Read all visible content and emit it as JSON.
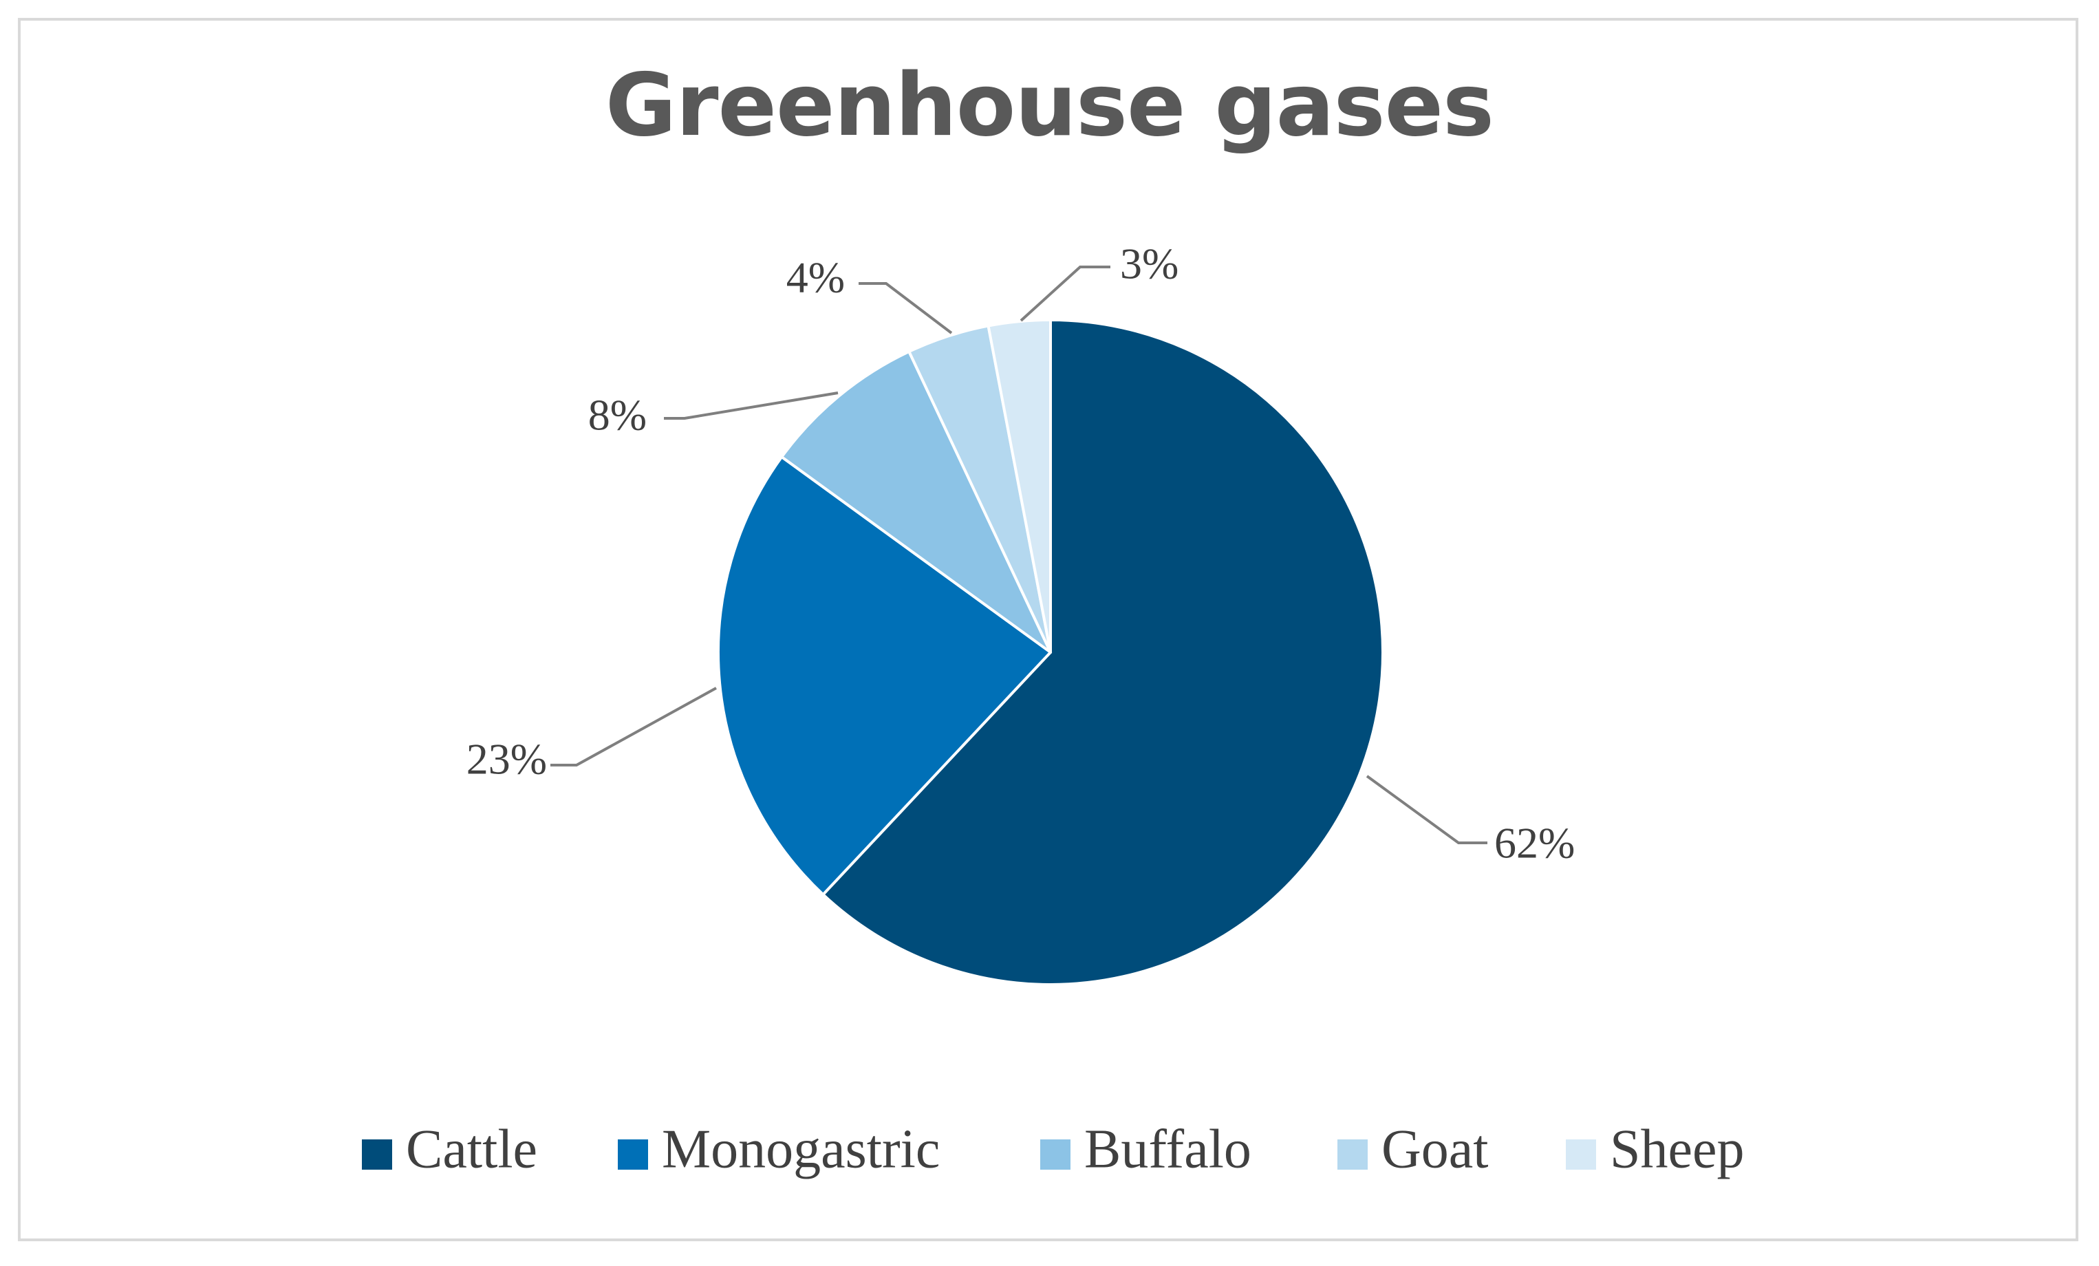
{
  "chart_data": {
    "type": "pie",
    "title": "Greenhouse gases",
    "categories": [
      "Cattle",
      "Monogastric",
      "Buffalo",
      "Goat",
      "Sheep"
    ],
    "values": [
      62,
      23,
      8,
      4,
      3
    ],
    "data_labels": [
      "62%",
      "23%",
      "8%",
      "4%",
      "3%"
    ],
    "colors": [
      "#004c7a",
      "#0070b7",
      "#8cc3e6",
      "#b4d8ef",
      "#d6e9f6"
    ],
    "legend_position": "bottom",
    "start_angle": "12 o'clock",
    "direction": "clockwise"
  }
}
